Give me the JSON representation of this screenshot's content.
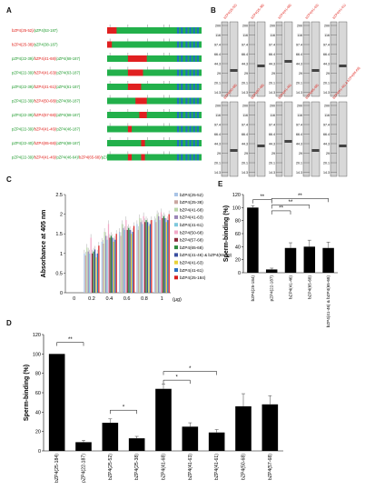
{
  "panel_labels": {
    "a": "A",
    "b": "B",
    "c": "C",
    "d": "D",
    "e": "E"
  },
  "colors": {
    "bzp4": "#e0201a",
    "pzp4": "#1e9a2c",
    "construct_green": "#22b04b",
    "construct_red": "#e02020",
    "construct_blue": "#1f6fbf",
    "bar_black": "#000000"
  },
  "panel_a": {
    "constructs": [
      {
        "parts": [
          [
            "bZP4(25-52)/",
            "#e0201a"
          ],
          [
            "pZP4(53-187)",
            "#1e9a2c"
          ]
        ],
        "red": [
          0.0,
          0.1
        ]
      },
      {
        "parts": [
          [
            "bZP4(25-38)/",
            "#e0201a"
          ],
          [
            "pZP4(38-187)",
            "#1e9a2c"
          ]
        ],
        "red": [
          0.0,
          0.05
        ]
      },
      {
        "parts": [
          [
            "pZP4(22-39)/",
            "#1e9a2c"
          ],
          [
            "bZP4(41-68)/",
            "#e0201a"
          ],
          [
            "pZP4(68-187)",
            "#1e9a2c"
          ]
        ],
        "red": [
          0.22,
          0.42
        ]
      },
      {
        "parts": [
          [
            "pZP4(22-39)/",
            "#1e9a2c"
          ],
          [
            "bZP4(41-63)/",
            "#e0201a"
          ],
          [
            "pZP4(63-187)",
            "#1e9a2c"
          ]
        ],
        "red": [
          0.22,
          0.38
        ]
      },
      {
        "parts": [
          [
            "pZP4(22-39)/",
            "#1e9a2c"
          ],
          [
            "bZP4(41-61)/",
            "#e0201a"
          ],
          [
            "pZP4(61-187)",
            "#1e9a2c"
          ]
        ],
        "red": [
          0.22,
          0.36
        ]
      },
      {
        "parts": [
          [
            "pZP4(22-39)/",
            "#1e9a2c"
          ],
          [
            "bZP4(50-68)/",
            "#e0201a"
          ],
          [
            "pZP4(68-187)",
            "#1e9a2c"
          ]
        ],
        "red": [
          0.3,
          0.42
        ]
      },
      {
        "parts": [
          [
            "pZP4(22-39)/",
            "#1e9a2c"
          ],
          [
            "bZP4(57-68)/",
            "#e0201a"
          ],
          [
            "pZP4(68-187)",
            "#1e9a2c"
          ]
        ],
        "red": [
          0.34,
          0.42
        ]
      },
      {
        "parts": [
          [
            "pZP4(22-39)/",
            "#1e9a2c"
          ],
          [
            "bZP4(41-46)/",
            "#e0201a"
          ],
          [
            "pZP4(46-187)",
            "#1e9a2c"
          ]
        ],
        "red": [
          0.22,
          0.26
        ]
      },
      {
        "parts": [
          [
            "pZP4(22-40)/",
            "#1e9a2c"
          ],
          [
            "bZP4(65-68)/",
            "#e0201a"
          ],
          [
            "pZP4(68-187)",
            "#1e9a2c"
          ]
        ],
        "red": [
          0.36,
          0.4
        ]
      },
      {
        "parts": [
          [
            "pZP4(22-39)/",
            "#1e9a2c"
          ],
          [
            "bZP4(41-46)/",
            "#e0201a"
          ],
          [
            "pZP4(46-64)/",
            "#1e9a2c"
          ],
          [
            "bZP4(65-68)/",
            "#e0201a"
          ],
          [
            "pZP4(68-187)",
            "#1e9a2c"
          ]
        ],
        "red": [
          0.22,
          0.26
        ],
        "red2": [
          0.36,
          0.4
        ]
      }
    ]
  },
  "panel_b": {
    "top_lanes": [
      "bZP4(25-52)",
      "bZP4(25-38)",
      "bZP4(41-68)",
      "bZP4(41-63)",
      "bZP4(41-61)"
    ],
    "bottom_lanes": [
      "bZP4(50-68)",
      "bZP4(57-68)",
      "bZP4(41-46)",
      "bZP4(65-68)",
      "bZP4(41-46) & bZP4(65-68)"
    ],
    "markers": [
      "200",
      "116",
      "97.4",
      "66.4",
      "44.3",
      "29",
      "20.1",
      "14.3"
    ]
  },
  "panel_c": {
    "chart_data": {
      "type": "bar",
      "title": "",
      "xlabel": "(μg)",
      "ylabel": "Absorbance at 405 nm",
      "x": [
        0,
        0.2,
        0.4,
        0.6,
        0.8,
        1
      ],
      "ylim": [
        0,
        2.5
      ],
      "yticks": [
        "0",
        "0.5",
        "1",
        "1.5",
        "2",
        "2.5"
      ],
      "xticks": [
        "0",
        "0.2",
        "0.4",
        "0.6",
        "0.8",
        "1"
      ],
      "series": [
        {
          "name": "bZP4(25-52)",
          "color": "#a9c4e6",
          "values": [
            0,
            1.0,
            1.3,
            1.55,
            1.75,
            1.85
          ]
        },
        {
          "name": "bZP4(25-38)",
          "color": "#c9a6a0",
          "values": [
            0,
            0.95,
            1.25,
            1.45,
            1.6,
            1.8
          ]
        },
        {
          "name": "bZP4(41-68)",
          "color": "#b9d6a8",
          "values": [
            0,
            1.15,
            1.55,
            1.75,
            1.9,
            2.0
          ]
        },
        {
          "name": "bZP4(41-63)",
          "color": "#9a86b8",
          "values": [
            0,
            1.05,
            1.45,
            1.65,
            1.8,
            1.95
          ]
        },
        {
          "name": "bZP4(41-61)",
          "color": "#7fc8dc",
          "values": [
            0,
            1.0,
            1.35,
            1.6,
            1.75,
            1.85
          ]
        },
        {
          "name": "bZP4(50-68)",
          "color": "#f2a9c8",
          "values": [
            0,
            1.4,
            1.75,
            1.85,
            1.95,
            2.05
          ]
        },
        {
          "name": "bZP4(57-68)",
          "color": "#8a2a3a",
          "values": [
            0,
            1.0,
            1.4,
            1.6,
            1.8,
            1.9
          ]
        },
        {
          "name": "bZP4(65-68)",
          "color": "#2e8b3e",
          "values": [
            0,
            1.05,
            1.45,
            1.65,
            1.85,
            1.95
          ]
        },
        {
          "name": "bZP4(41-46) & bZP4(65-68)",
          "color": "#3a4fa0",
          "values": [
            0,
            1.1,
            1.4,
            1.6,
            1.8,
            1.9
          ]
        },
        {
          "name": "bZP4(41-63)",
          "color": "#e8d23a",
          "values": [
            0,
            0.9,
            1.3,
            1.5,
            1.7,
            1.8
          ]
        },
        {
          "name": "bZP4(41-61)",
          "color": "#2b6fc0",
          "values": [
            0,
            1.0,
            1.35,
            1.55,
            1.75,
            1.85
          ]
        },
        {
          "name": "bZP4(25-184)",
          "color": "#d81e1e",
          "values": [
            0,
            1.2,
            1.5,
            1.7,
            1.85,
            2.0
          ]
        }
      ]
    }
  },
  "panel_e": {
    "chart_data": {
      "type": "bar",
      "ylabel": "Sperm-binding (%)",
      "categories": [
        "bZP4(25-184)",
        "pZP4(22-187)",
        "bZP4(41-46)",
        "bZP4(65-68)",
        "bZP4(41-46) & bZP4(65-68)"
      ],
      "values": [
        100,
        5,
        38,
        40,
        38
      ],
      "errors": [
        3,
        2,
        8,
        10,
        9
      ],
      "ylim": [
        0,
        120
      ],
      "yticks": [
        "0",
        "20",
        "40",
        "60",
        "80",
        "100",
        "120"
      ],
      "sig": [
        "**",
        "**",
        "**",
        "**"
      ]
    }
  },
  "panel_d": {
    "chart_data": {
      "type": "bar",
      "ylabel": "Sperm-binding (%)",
      "categories": [
        "bZP4(25-184)",
        "pZP4(22-187)",
        "bZP4(25-52)",
        "bZP4(25-38)",
        "bZP4(41-68)",
        "bZP4(41-63)",
        "bZP4(41-61)",
        "bZP4(50-68)",
        "bZP4(57-68)"
      ],
      "values": [
        100,
        9,
        29,
        13,
        64,
        25,
        19,
        46,
        48
      ],
      "errors": [
        0,
        2,
        4,
        2,
        5,
        4,
        3,
        13,
        9
      ],
      "ylim": [
        0,
        120
      ],
      "yticks": [
        "0",
        "20",
        "40",
        "60",
        "80",
        "100",
        "120"
      ],
      "sig": [
        "**",
        "*",
        "*",
        "*"
      ]
    }
  }
}
